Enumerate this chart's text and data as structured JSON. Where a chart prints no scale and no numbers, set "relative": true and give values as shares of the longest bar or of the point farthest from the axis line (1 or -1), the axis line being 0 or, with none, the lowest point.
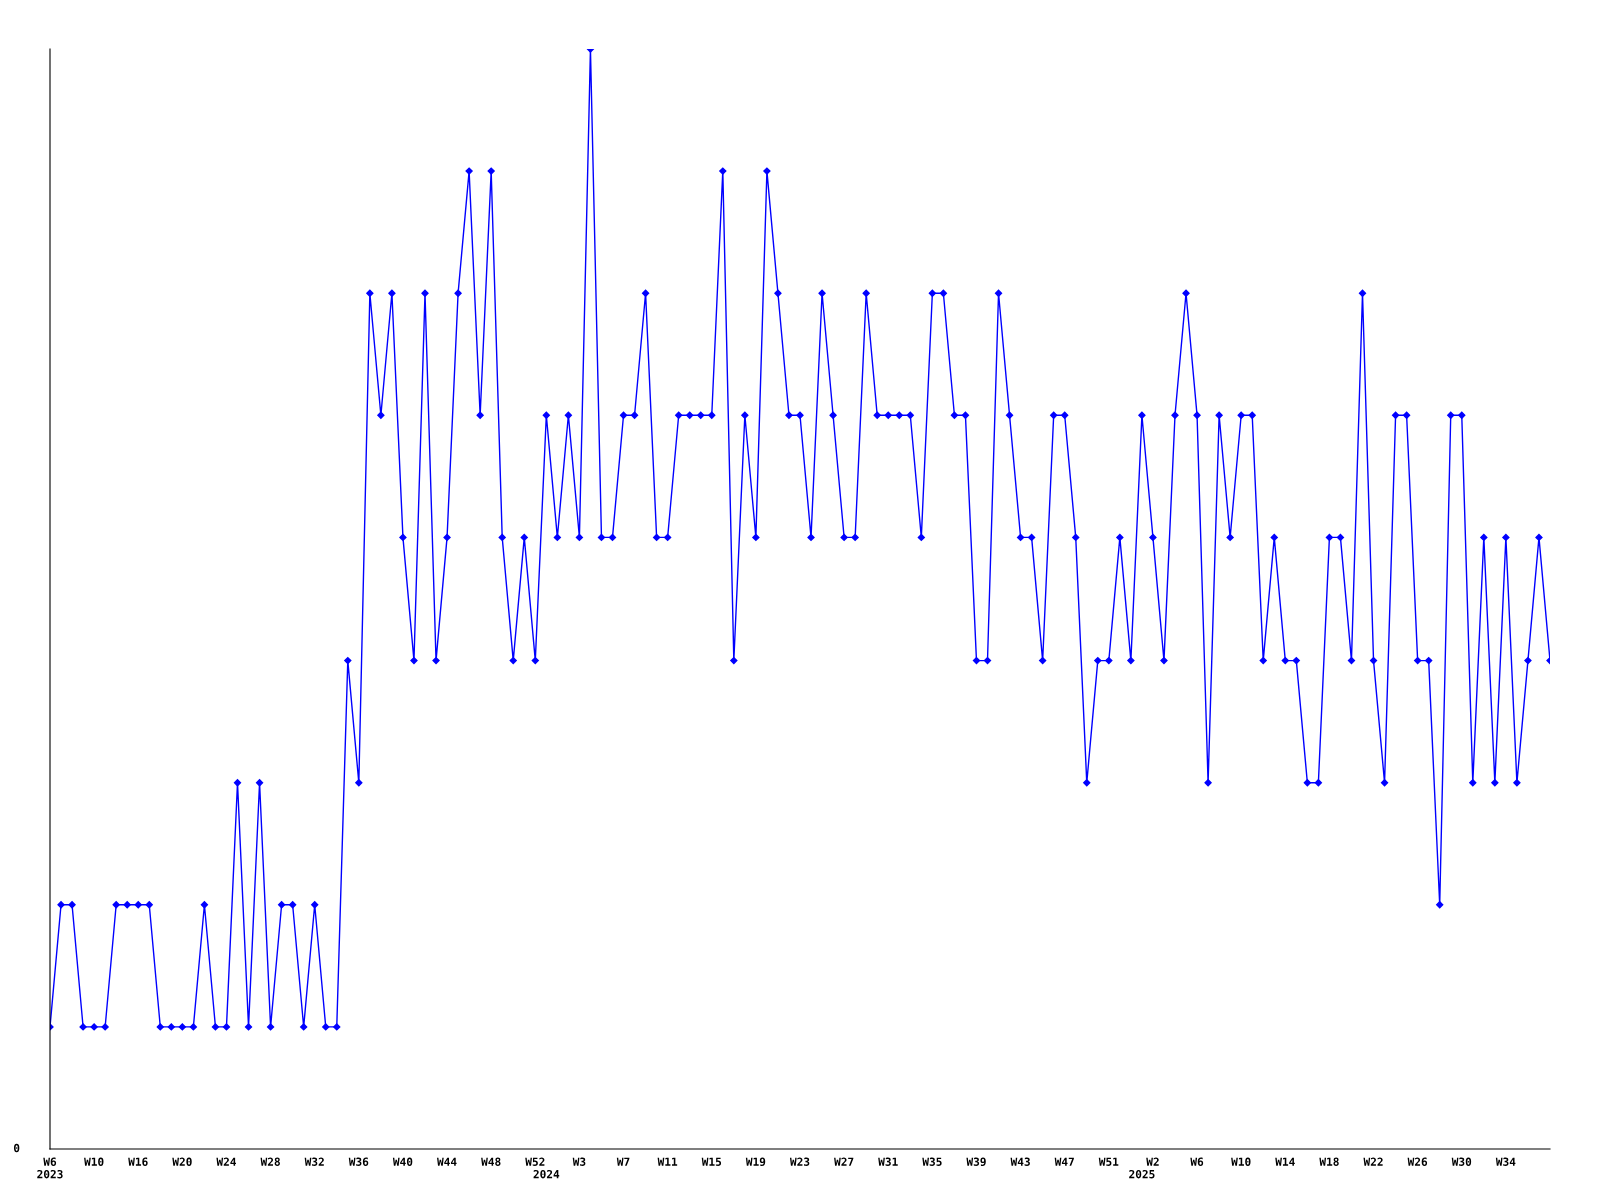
{
  "chart_data": {
    "type": "line",
    "relative": true,
    "color": "#0000ff",
    "marker": "diamond",
    "line_style": "solid",
    "grid": false,
    "legend": false,
    "annotations": [
      "0"
    ],
    "categories": [
      "W6\n2023",
      null,
      null,
      null,
      "W10",
      null,
      null,
      null,
      "W16",
      null,
      null,
      null,
      "W20",
      null,
      null,
      null,
      "W24",
      null,
      null,
      null,
      "W28",
      null,
      null,
      null,
      "W32",
      null,
      null,
      null,
      "W36",
      null,
      null,
      null,
      "W40",
      null,
      null,
      null,
      "W44",
      null,
      null,
      null,
      "W48",
      null,
      null,
      null,
      "W52",
      "\n2024",
      null,
      null,
      "W3",
      null,
      null,
      null,
      "W7",
      null,
      null,
      null,
      "W11",
      null,
      null,
      null,
      "W15",
      null,
      null,
      null,
      "W19",
      null,
      null,
      null,
      "W23",
      null,
      null,
      null,
      "W27",
      null,
      null,
      null,
      "W31",
      null,
      null,
      null,
      "W35",
      null,
      null,
      null,
      "W39",
      null,
      null,
      null,
      "W43",
      null,
      null,
      null,
      "W47",
      null,
      null,
      null,
      "W51",
      null,
      null,
      "\n2025",
      "W2",
      null,
      null,
      null,
      "W6",
      null,
      null,
      null,
      "W10",
      null,
      null,
      null,
      "W14",
      null,
      null,
      null,
      "W18",
      null,
      null,
      null,
      "W22",
      null,
      null,
      null,
      "W26",
      null,
      null,
      null,
      "W30",
      null,
      null,
      null,
      "W34",
      null,
      null,
      null,
      null
    ],
    "values": [
      0.111,
      0.222,
      0.222,
      0.111,
      0.111,
      0.111,
      0.222,
      0.222,
      0.222,
      0.222,
      0.111,
      0.111,
      0.111,
      0.111,
      0.222,
      0.111,
      0.111,
      0.333,
      0.111,
      0.333,
      0.111,
      0.222,
      0.222,
      0.111,
      0.222,
      0.111,
      0.111,
      0.444,
      0.333,
      0.778,
      0.667,
      0.778,
      0.556,
      0.444,
      0.778,
      0.444,
      0.556,
      0.778,
      0.889,
      0.667,
      0.889,
      0.556,
      0.444,
      0.556,
      0.444,
      0.667,
      0.556,
      0.667,
      0.556,
      1,
      0.556,
      0.556,
      0.667,
      0.667,
      0.778,
      0.556,
      0.556,
      0.667,
      0.667,
      0.667,
      0.667,
      0.889,
      0.444,
      0.667,
      0.556,
      0.889,
      0.778,
      0.667,
      0.667,
      0.556,
      0.778,
      0.667,
      0.556,
      0.556,
      0.778,
      0.667,
      0.667,
      0.667,
      0.667,
      0.556,
      0.778,
      0.778,
      0.667,
      0.667,
      0.444,
      0.444,
      0.778,
      0.667,
      0.556,
      0.556,
      0.444,
      0.667,
      0.667,
      0.556,
      0.333,
      0.444,
      0.444,
      0.556,
      0.444,
      0.667,
      0.556,
      0.444,
      0.667,
      0.778,
      0.667,
      0.333,
      0.667,
      0.556,
      0.667,
      0.667,
      0.444,
      0.556,
      0.444,
      0.444,
      0.333,
      0.333,
      0.556,
      0.556,
      0.444,
      0.778,
      0.444,
      0.333,
      0.667,
      0.667,
      0.444,
      0.444,
      0.222,
      0.667,
      0.667,
      0.333,
      0.556,
      0.333,
      0.556,
      0.333,
      0.444,
      0.556,
      0.444
    ]
  }
}
